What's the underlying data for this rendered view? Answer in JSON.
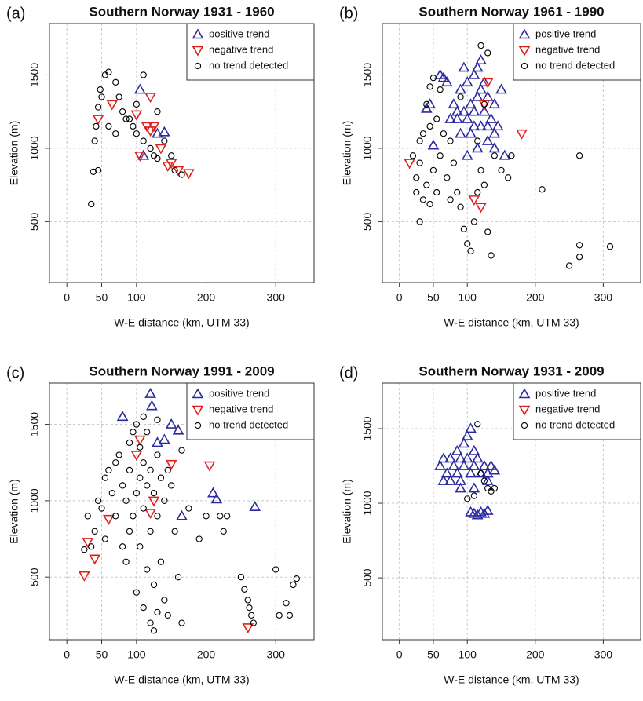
{
  "chart_data": [
    {
      "type": "scatter",
      "panel_label": "(a)",
      "title": "Southern Norway 1931 - 1960",
      "x_label": "W-E distance (km, UTM 33)",
      "y_label": "Elevation (m)",
      "xlim": [
        -25,
        355
      ],
      "ylim": [
        85,
        1850
      ],
      "xticks": [
        0,
        50,
        100,
        200,
        300
      ],
      "yticks": [
        500,
        1000,
        1500
      ],
      "grid": true,
      "legend": "top-right",
      "series": [
        {
          "name": "positive trend",
          "marker": "triangle-up",
          "color": "#2b2ba0",
          "x": [
            105,
            130,
            140,
            110
          ],
          "y": [
            1400,
            1100,
            1110,
            950
          ]
        },
        {
          "name": "negative trend",
          "marker": "triangle-down",
          "color": "#e0201b",
          "x": [
            45,
            65,
            100,
            115,
            120,
            125,
            135,
            150,
            160,
            175,
            120,
            105,
            145
          ],
          "y": [
            1200,
            1300,
            1230,
            1150,
            1120,
            1150,
            1000,
            900,
            850,
            830,
            1350,
            950,
            880
          ]
        },
        {
          "name": "no trend detected",
          "marker": "circle",
          "color": "#000000",
          "x": [
            35,
            38,
            45,
            40,
            42,
            45,
            50,
            48,
            55,
            60,
            70,
            75,
            80,
            90,
            95,
            100,
            110,
            120,
            125,
            130,
            140,
            150,
            155,
            165,
            110,
            100,
            85,
            60,
            70,
            130
          ],
          "y": [
            620,
            840,
            850,
            1050,
            1150,
            1280,
            1350,
            1400,
            1500,
            1520,
            1450,
            1350,
            1250,
            1200,
            1150,
            1100,
            1050,
            1000,
            950,
            930,
            1050,
            950,
            850,
            820,
            1500,
            1300,
            1200,
            1150,
            1100,
            1250
          ]
        }
      ]
    },
    {
      "type": "scatter",
      "panel_label": "(b)",
      "title": "Southern Norway 1961 - 1990",
      "x_label": "W-E distance (km, UTM 33)",
      "y_label": "Elevation (m)",
      "xlim": [
        -25,
        355
      ],
      "ylim": [
        85,
        1850
      ],
      "xticks": [
        0,
        50,
        100,
        200,
        300
      ],
      "yticks": [
        500,
        1000,
        1500
      ],
      "grid": true,
      "legend": "top-right",
      "series": [
        {
          "name": "positive trend",
          "marker": "triangle-up",
          "color": "#2b2ba0",
          "x": [
            40,
            45,
            50,
            60,
            70,
            75,
            80,
            85,
            90,
            95,
            100,
            100,
            105,
            105,
            110,
            110,
            115,
            115,
            120,
            120,
            125,
            125,
            130,
            130,
            135,
            140,
            140,
            145,
            150,
            155,
            90,
            100,
            110,
            120,
            95,
            130,
            65,
            85,
            115,
            140
          ],
          "y": [
            1270,
            1300,
            1020,
            1500,
            1450,
            1200,
            1300,
            1250,
            1400,
            1550,
            1450,
            1200,
            1300,
            1100,
            1500,
            1250,
            1000,
            1350,
            1600,
            1150,
            1450,
            1250,
            1050,
            1350,
            1200,
            1300,
            1000,
            1150,
            1400,
            950,
            1100,
            950,
            1150,
            1400,
            1250,
            1150,
            1480,
            1200,
            1550,
            1100
          ]
        },
        {
          "name": "negative trend",
          "marker": "triangle-down",
          "color": "#e0201b",
          "x": [
            15,
            180,
            130,
            110,
            120,
            125
          ],
          "y": [
            900,
            1100,
            1450,
            650,
            600,
            1300
          ]
        },
        {
          "name": "no trend detected",
          "marker": "circle",
          "color": "#000000",
          "x": [
            20,
            25,
            25,
            30,
            30,
            35,
            35,
            40,
            40,
            45,
            45,
            50,
            55,
            55,
            60,
            65,
            70,
            75,
            80,
            85,
            90,
            95,
            100,
            105,
            110,
            115,
            120,
            125,
            130,
            135,
            140,
            150,
            160,
            165,
            45,
            50,
            120,
            130,
            125,
            115,
            210,
            250,
            265,
            265,
            265,
            310,
            30,
            90,
            60,
            75
          ],
          "y": [
            950,
            800,
            700,
            900,
            1050,
            1100,
            650,
            1300,
            750,
            1150,
            620,
            850,
            1200,
            700,
            950,
            1100,
            800,
            650,
            900,
            700,
            600,
            450,
            350,
            300,
            500,
            700,
            850,
            750,
            430,
            270,
            950,
            850,
            800,
            950,
            1420,
            1480,
            1700,
            1650,
            1300,
            1050,
            720,
            200,
            260,
            340,
            950,
            330,
            500,
            1350,
            1400,
            1050
          ]
        }
      ]
    },
    {
      "type": "scatter",
      "panel_label": "(c)",
      "title": "Southern Norway 1991 - 2009",
      "x_label": "W-E distance (km, UTM 33)",
      "y_label": "Elevation (m)",
      "xlim": [
        -25,
        355
      ],
      "ylim": [
        90,
        1770
      ],
      "xticks": [
        0,
        50,
        100,
        200,
        300
      ],
      "yticks": [
        500,
        1000,
        1500
      ],
      "grid": true,
      "legend": "top-right",
      "series": [
        {
          "name": "positive trend",
          "marker": "triangle-up",
          "color": "#2b2ba0",
          "x": [
            80,
            120,
            122,
            140,
            150,
            160,
            215,
            270,
            210,
            130,
            165
          ],
          "y": [
            1550,
            1700,
            1620,
            1400,
            1500,
            1460,
            1010,
            960,
            1050,
            1380,
            900
          ]
        },
        {
          "name": "negative trend",
          "marker": "triangle-down",
          "color": "#e0201b",
          "x": [
            25,
            30,
            40,
            60,
            100,
            105,
            120,
            205,
            260,
            150,
            125
          ],
          "y": [
            510,
            730,
            620,
            880,
            1300,
            1400,
            920,
            1230,
            170,
            1240,
            1000
          ]
        },
        {
          "name": "no trend detected",
          "marker": "circle",
          "color": "#000000",
          "x": [
            25,
            30,
            35,
            40,
            45,
            50,
            55,
            55,
            60,
            65,
            70,
            70,
            75,
            80,
            80,
            85,
            85,
            90,
            90,
            95,
            95,
            100,
            100,
            100,
            105,
            105,
            105,
            110,
            110,
            110,
            115,
            115,
            115,
            120,
            120,
            120,
            125,
            125,
            125,
            130,
            130,
            130,
            135,
            135,
            140,
            140,
            145,
            145,
            150,
            155,
            160,
            165,
            165,
            175,
            190,
            200,
            220,
            225,
            230,
            250,
            255,
            260,
            262,
            265,
            268,
            300,
            305,
            315,
            320,
            325,
            330,
            110,
            130,
            90
          ],
          "y": [
            680,
            900,
            700,
            800,
            1000,
            950,
            1150,
            750,
            1200,
            1050,
            1250,
            900,
            1300,
            1100,
            700,
            1000,
            600,
            1200,
            800,
            1450,
            900,
            1500,
            1050,
            400,
            1350,
            1150,
            700,
            1250,
            950,
            300,
            1450,
            1100,
            550,
            1200,
            800,
            200,
            1050,
            450,
            150,
            1300,
            900,
            270,
            1150,
            600,
            1000,
            350,
            1200,
            250,
            1100,
            800,
            500,
            1330,
            200,
            950,
            750,
            900,
            900,
            800,
            900,
            500,
            420,
            350,
            300,
            250,
            200,
            550,
            250,
            330,
            250,
            450,
            490,
            1550,
            1530,
            1380
          ]
        }
      ]
    },
    {
      "type": "scatter",
      "panel_label": "(d)",
      "title": "Southern Norway 1931 - 2009",
      "x_label": "W-E distance (km, UTM 33)",
      "y_label": "Elevation (m)",
      "xlim": [
        -25,
        355
      ],
      "ylim": [
        85,
        1805
      ],
      "xticks": [
        0,
        50,
        100,
        200,
        300
      ],
      "yticks": [
        500,
        1000,
        1500
      ],
      "grid": true,
      "legend": "top-right",
      "series": [
        {
          "name": "positive trend",
          "marker": "triangle-up",
          "color": "#2b2ba0",
          "x": [
            60,
            65,
            65,
            70,
            75,
            75,
            80,
            85,
            85,
            90,
            90,
            95,
            95,
            100,
            100,
            105,
            105,
            110,
            110,
            115,
            120,
            125,
            130,
            135,
            140,
            110,
            115,
            120,
            125,
            130,
            105,
            90,
            110,
            130
          ],
          "y": [
            1250,
            1300,
            1150,
            1200,
            1300,
            1150,
            1250,
            1350,
            1200,
            1300,
            1150,
            1400,
            1250,
            1450,
            1300,
            1500,
            1200,
            1350,
            1250,
            1300,
            1200,
            1250,
            1200,
            1250,
            1220,
            930,
            920,
            940,
            930,
            950,
            940,
            1100,
            1100,
            1150
          ]
        },
        {
          "name": "negative trend",
          "marker": "triangle-down",
          "color": "#e0201b",
          "x": [],
          "y": []
        },
        {
          "name": "no trend detected",
          "marker": "circle",
          "color": "#000000",
          "x": [
            115,
            100,
            110,
            125,
            130,
            135,
            140,
            120
          ],
          "y": [
            1530,
            1030,
            1050,
            1150,
            1100,
            1080,
            1100,
            1200
          ]
        }
      ]
    }
  ]
}
